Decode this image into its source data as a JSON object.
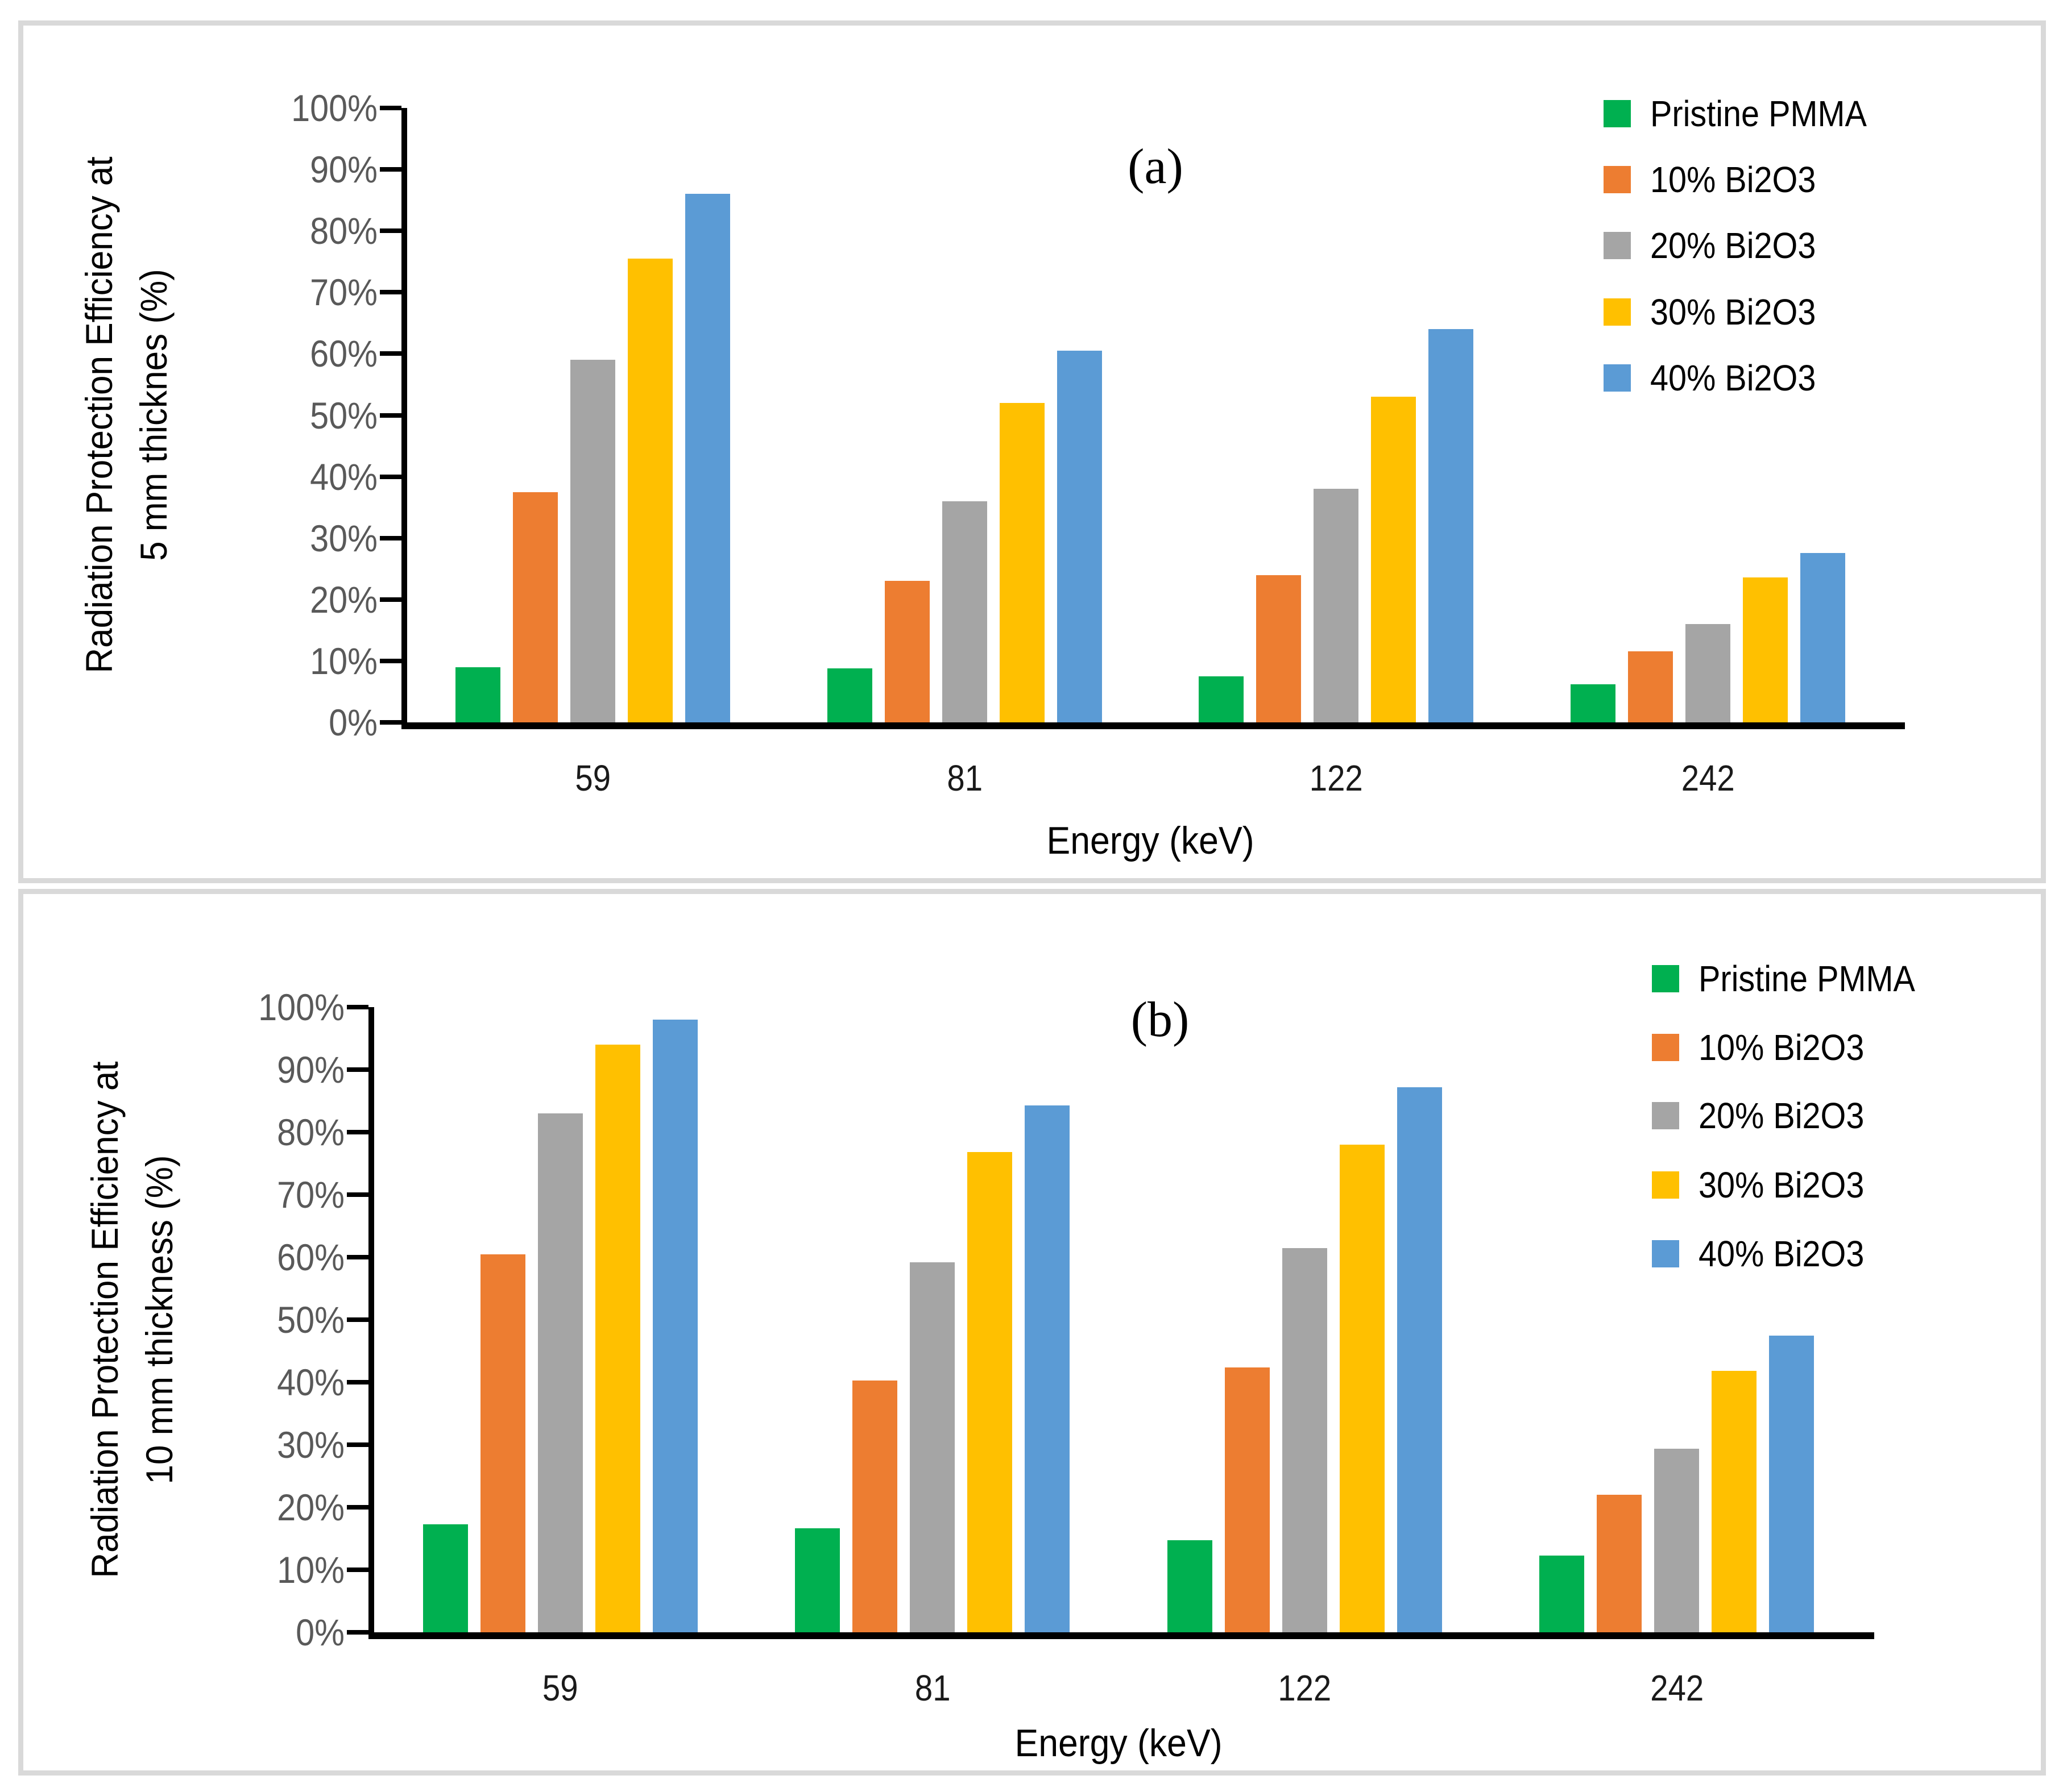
{
  "figure": {
    "background_color": "#ffffff",
    "panel_border_color": "#d9d9d9",
    "axis_color": "#000000",
    "ytick_label_color": "#595959",
    "xtick_label_color": "#1a1a1a"
  },
  "chart_data": [
    {
      "type": "bar",
      "panel_label": "(a)",
      "categories": [
        "59",
        "81",
        "122",
        "242"
      ],
      "series": [
        {
          "name": "Pristine PMMA",
          "color": "#00B050",
          "values": [
            9,
            8.8,
            7.5,
            6.2
          ]
        },
        {
          "name": "10% Bi2O3",
          "color": "#ED7D31",
          "values": [
            37.5,
            23,
            24,
            11.6
          ]
        },
        {
          "name": "20% Bi2O3",
          "color": "#A5A5A5",
          "values": [
            59,
            36,
            38,
            16
          ]
        },
        {
          "name": "30% Bi2O3",
          "color": "#FFC000",
          "values": [
            75.5,
            52,
            53,
            23.6
          ]
        },
        {
          "name": "40% Bi2O3",
          "color": "#5B9BD5",
          "values": [
            86,
            60.5,
            64,
            27.6
          ]
        }
      ],
      "title": "",
      "xlabel": "Energy (keV)",
      "ylabel_line1": "Radiation Protection Efficiency at",
      "ylabel_line2": "5 mm thicknes (%)",
      "ylim": [
        0,
        100
      ],
      "ytick_step": 10,
      "ytick_labels": [
        "0%",
        "10%",
        "20%",
        "30%",
        "40%",
        "50%",
        "60%",
        "70%",
        "80%",
        "90%",
        "100%"
      ],
      "grid": false,
      "legend_position": "right-top"
    },
    {
      "type": "bar",
      "panel_label": "(b)",
      "categories": [
        "59",
        "81",
        "122",
        "242"
      ],
      "series": [
        {
          "name": "Pristine PMMA",
          "color": "#00B050",
          "values": [
            17.3,
            16.6,
            14.7,
            12.3
          ]
        },
        {
          "name": "10% Bi2O3",
          "color": "#ED7D31",
          "values": [
            60.5,
            40.3,
            42.4,
            22
          ]
        },
        {
          "name": "20% Bi2O3",
          "color": "#A5A5A5",
          "values": [
            83,
            59.2,
            61.5,
            29.4
          ]
        },
        {
          "name": "30% Bi2O3",
          "color": "#FFC000",
          "values": [
            94,
            76.8,
            78,
            41.8
          ]
        },
        {
          "name": "40% Bi2O3",
          "color": "#5B9BD5",
          "values": [
            98,
            84.3,
            87.2,
            47.5
          ]
        }
      ],
      "title": "",
      "xlabel": "Energy (keV)",
      "ylabel_line1": "Radiation Protection Efficiency at",
      "ylabel_line2": "10 mm thickness (%)",
      "ylim": [
        0,
        100
      ],
      "ytick_step": 10,
      "ytick_labels": [
        "0%",
        "10%",
        "20%",
        "30%",
        "40%",
        "50%",
        "60%",
        "70%",
        "80%",
        "90%",
        "100%"
      ],
      "grid": false,
      "legend_position": "right-top"
    }
  ],
  "legend_layout": [
    {
      "swatch_left": 2779,
      "item_centers": [
        155,
        271,
        387,
        504,
        620
      ]
    },
    {
      "swatch_left": 2864,
      "item_centers": [
        149,
        270,
        390,
        512,
        633
      ]
    }
  ]
}
